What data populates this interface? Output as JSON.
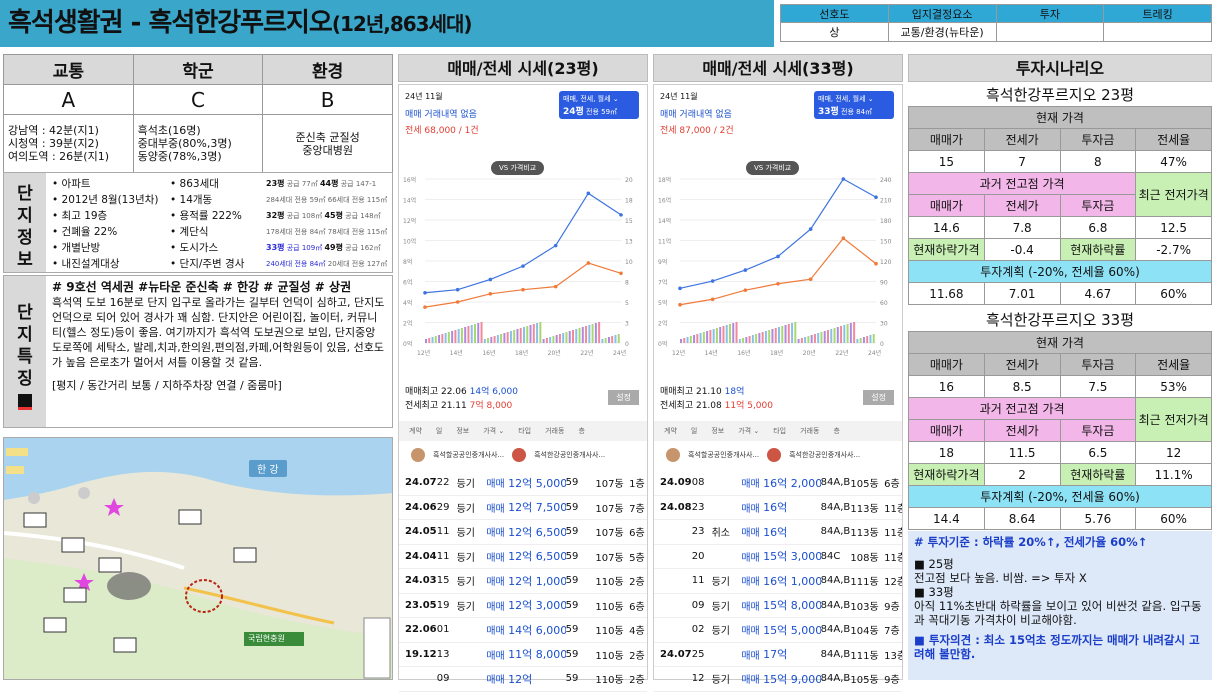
{
  "title": {
    "main": "흑석생활권 - 흑석한강푸르지오",
    "sub": "(12년,863세대)"
  },
  "header_table": {
    "cols": [
      "선호도",
      "입지결정요소",
      "투자",
      "트레킹"
    ],
    "vals": [
      "상",
      "교통/환경(뉴타운)",
      "",
      ""
    ]
  },
  "grades": {
    "cols": [
      "교통",
      "학군",
      "환경"
    ],
    "grade": [
      "A",
      "C",
      "B"
    ],
    "desc": [
      [
        "강남역 : 42분(지1)",
        "시청역 : 39분(지2)",
        "여의도역 : 26분(지1)"
      ],
      [
        "흑석초(16명)",
        "중대부중(80%,3명)",
        "동양중(78%,3명)"
      ],
      [
        "준신축 균질성",
        "중앙대병원"
      ]
    ]
  },
  "info": {
    "label": "단지정보",
    "col1": [
      "아파트",
      "2012년 8월(13년차)",
      "최고 19층",
      "건폐율 22%",
      "개별난방",
      "내진설계대상"
    ],
    "col2": [
      "863세대",
      "14개동",
      "용적률 222%",
      "계단식",
      "도시가스",
      "단지/주변 경사"
    ],
    "types": [
      [
        "23평",
        "공급 77㎡",
        "44평",
        "공급 147-1"
      ],
      [
        "284세대",
        "전용 59㎡",
        "66세대",
        "전용 115㎡"
      ],
      [
        "32평",
        "공급 108㎡",
        "45평",
        "공급 148㎡"
      ],
      [
        "178세대",
        "전용 84㎡",
        "78세대",
        "전용 115㎡"
      ],
      [
        "33평",
        "공급 109㎡",
        "49평",
        "공급 162㎡"
      ],
      [
        "240세대",
        "전용 84㎡",
        "20세대",
        "전용 127㎡"
      ]
    ]
  },
  "feature": {
    "label": "단지특징",
    "tags": "# 9호선 역세권 #뉴타운 준신축 # 한강 # 균질성 # 상권",
    "body": "흑석역 도보 16분로 단지 입구로 올라가는 길부터 언덕이 심하고, 단지도 언덕으로 되어 있어 경사가 꽤 심함. 단지안은 어린이집, 놀이터, 커뮤니티(헬스 정도)등이 좋음. 여기까지가 흑석역 도보권으로 보임, 단지중앙 도로쪽에 세탁소, 발레,치과,한의원,편의점,카페,어학원등이 있음, 선호도가 높음 은로초가 멀어서 셔틀 이용할 것 같음.",
    "foot": "[평지 / 동간거리 보통 / 지하주차장 연결 / 줌룸마]"
  },
  "map": {
    "river": "한 강",
    "place": "국립현충원"
  },
  "panel23": {
    "head": "매매/전세 시세(23평)",
    "date": "24년 11월",
    "none": "매매 거래내역 없음",
    "rent": "전세 68,000 / 1건",
    "sel": "매매, 전세, 월세",
    "selpy": "24평",
    "selsub": "전용 59㎡",
    "vs": "VS 가격비교",
    "hi1": "매매최고 22.06",
    "hi1v": "14억 6,000",
    "hi2": "전세최고 21.11",
    "hi2v": "7억 8,000",
    "set": "설정",
    "rows": [
      [
        "24.07",
        "22",
        "등기",
        "매매",
        "12억 5,000",
        "59",
        "107동",
        "1층"
      ],
      [
        "24.06",
        "29",
        "등기",
        "매매",
        "12억 7,500",
        "59",
        "107동",
        "7층"
      ],
      [
        "24.05",
        "11",
        "등기",
        "매매",
        "12억 6,500",
        "59",
        "107동",
        "6층"
      ],
      [
        "24.04",
        "11",
        "등기",
        "매매",
        "12억 6,500",
        "59",
        "107동",
        "5층"
      ],
      [
        "24.03",
        "15",
        "등기",
        "매매",
        "12억 1,000",
        "59",
        "110동",
        "2층"
      ],
      [
        "23.05",
        "19",
        "등기",
        "매매",
        "12억 3,000",
        "59",
        "110동",
        "6층"
      ],
      [
        "22.06",
        "01",
        "",
        "매매",
        "14억 6,000",
        "59",
        "110동",
        "4층"
      ],
      [
        "19.12",
        "13",
        "",
        "매매",
        "11억 8,000",
        "59",
        "110동",
        "2층"
      ],
      [
        "",
        "09",
        "",
        "매매",
        "12억",
        "59",
        "110동",
        "2층"
      ]
    ]
  },
  "panel33": {
    "head": "매매/전세 시세(33평)",
    "date": "24년 11월",
    "none": "매매 거래내역 없음",
    "rent": "전세 87,000 / 2건",
    "sel": "매매, 전세, 월세",
    "selpy": "33평",
    "selsub": "전용 84㎡",
    "vs": "VS 가격비교",
    "hi1": "매매최고 21.10",
    "hi1v": "18억",
    "hi2": "전세최고 21.08",
    "hi2v": "11억 5,000",
    "set": "설정",
    "rows": [
      [
        "24.09",
        "08",
        "",
        "매매",
        "16억 2,000",
        "84A,B",
        "105동",
        "6층"
      ],
      [
        "24.08",
        "23",
        "",
        "매매",
        "16억",
        "84A,B",
        "113동",
        "11층"
      ],
      [
        "",
        "23",
        "취소",
        "매매",
        "16억",
        "84A,B",
        "113동",
        "11층"
      ],
      [
        "",
        "20",
        "",
        "매매",
        "15억 3,000",
        "84C",
        "108동",
        "11층"
      ],
      [
        "",
        "11",
        "등기",
        "매매",
        "16억 1,000",
        "84A,B",
        "111동",
        "12층"
      ],
      [
        "",
        "09",
        "등기",
        "매매",
        "15억 8,000",
        "84A,B",
        "103동",
        "9층"
      ],
      [
        "",
        "02",
        "등기",
        "매매",
        "15억 5,000",
        "84A,B",
        "104동",
        "7층"
      ],
      [
        "24.07",
        "25",
        "",
        "매매",
        "17억",
        "84A,B",
        "111동",
        "13층"
      ],
      [
        "",
        "12",
        "등기",
        "매매",
        "15억 9,000",
        "84A,B",
        "105동",
        "9층"
      ]
    ]
  },
  "scenario": {
    "head": "투자시나리오",
    "t23": {
      "name": "흑석한강푸르지오 23평",
      "now": "현재 가격",
      "c": [
        "매매가",
        "전세가",
        "투자금",
        "전세율"
      ],
      "v": [
        "15",
        "7",
        "8",
        "47%"
      ],
      "past": "과거 전고점 가격",
      "recent": "최근 전저가격",
      "pc": [
        "매매가",
        "전세가",
        "투자금"
      ],
      "pv": [
        "14.6",
        "7.8",
        "6.8",
        "12.5"
      ],
      "dl": "현재하락가격",
      "dv": "-0.4",
      "rl": "현재하락률",
      "rv": "-2.7%",
      "plan": "투자계획 (-20%, 전세율 60%)",
      "planv": [
        "11.68",
        "7.01",
        "4.67",
        "60%"
      ]
    },
    "t33": {
      "name": "흑석한강푸르지오 33평",
      "now": "현재 가격",
      "c": [
        "매매가",
        "전세가",
        "투자금",
        "전세율"
      ],
      "v": [
        "16",
        "8.5",
        "7.5",
        "53%"
      ],
      "past": "과거 전고점 가격",
      "recent": "최근 전저가격",
      "pc": [
        "매매가",
        "전세가",
        "투자금"
      ],
      "pv": [
        "18",
        "11.5",
        "6.5",
        "12"
      ],
      "dl": "현재하락가격",
      "dv": "2",
      "rl": "현재하락률",
      "rv": "11.1%",
      "plan": "투자계획 (-20%, 전세율 60%)",
      "planv": [
        "14.4",
        "8.64",
        "5.76",
        "60%"
      ]
    }
  },
  "note": {
    "l1": "# 투자기준 : 하락률 20%↑, 전세가율 60%↑",
    "l2": "■ 25평",
    "l3": "전고점 보다 높음. 비쌈. => 투자 X",
    "l4": "■ 33평",
    "l5": "아직 11%초반대 하락률을 보이고 있어 비싼것 같음. 입구동과 꼭대기동 가격차이 비교해야함.",
    "l6": "■ 투자의견 : 최소 15억초 정도까지는 매매가 내려갈시 고려해 볼만함."
  },
  "chart_data": [
    {
      "type": "line",
      "title": "매매/전세 시세(23평)",
      "x": [
        "12년",
        "14년",
        "16년",
        "18년",
        "20년",
        "22년",
        "24년"
      ],
      "ylim": [
        0,
        16
      ],
      "y2lim": [
        0,
        20
      ],
      "series": [
        {
          "name": "매매",
          "values": [
            4.9,
            5.2,
            6.2,
            7.5,
            9.5,
            14.6,
            12.5
          ]
        },
        {
          "name": "전세",
          "values": [
            3.5,
            4.0,
            4.8,
            5.2,
            5.5,
            7.8,
            6.8
          ]
        }
      ]
    },
    {
      "type": "line",
      "title": "매매/전세 시세(33평)",
      "x": [
        "12년",
        "14년",
        "16년",
        "18년",
        "20년",
        "22년",
        "24년"
      ],
      "ylim": [
        0,
        18
      ],
      "y2lim": [
        0,
        240
      ],
      "series": [
        {
          "name": "매매",
          "values": [
            6.0,
            6.8,
            8.0,
            9.5,
            12.5,
            18,
            16
          ]
        },
        {
          "name": "전세",
          "values": [
            4.2,
            4.8,
            5.8,
            6.5,
            7.0,
            11.5,
            8.7
          ]
        }
      ]
    }
  ]
}
